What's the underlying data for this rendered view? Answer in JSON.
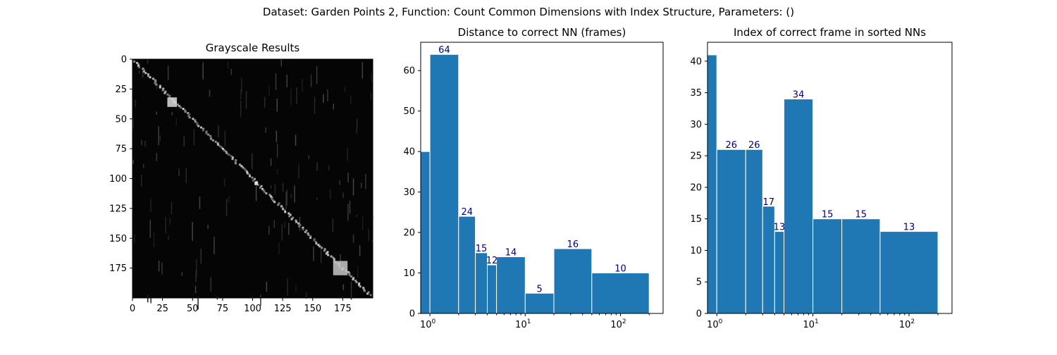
{
  "suptitle": "Dataset:  Garden Points 2,  Function:  Count Common Dimensions with Index Structure, Parameters: ()",
  "colors": {
    "bar": "#1f77b4",
    "bar_edge": "#ffffff",
    "data_label": "#000080",
    "axis": "#000000",
    "heatmap_bg": "#050505"
  },
  "chart_data": [
    {
      "type": "heatmap",
      "title": "Grayscale Results",
      "colormap": "gray",
      "x_ticks": [
        0,
        25,
        50,
        75,
        100,
        125,
        150,
        175
      ],
      "y_ticks": [
        0,
        25,
        50,
        75,
        100,
        125,
        150,
        175
      ],
      "xlim": [
        0,
        200
      ],
      "ylim": [
        0,
        200
      ],
      "y_inverted": true
    },
    {
      "type": "bar",
      "title": "Distance to correct NN (frames)",
      "x_scale": "log",
      "xlim": [
        0.8,
        280
      ],
      "ylim": [
        0,
        67
      ],
      "y_ticks": [
        0,
        10,
        20,
        30,
        40,
        50,
        60
      ],
      "x_ticks": [
        1,
        10,
        100
      ],
      "x_tick_labels": [
        "10^0",
        "10^1",
        "10^2"
      ],
      "bins": [
        {
          "x0": 0,
          "x1": 1,
          "value": 40,
          "label": ""
        },
        {
          "x0": 1,
          "x1": 2,
          "value": 64,
          "label": "64"
        },
        {
          "x0": 2,
          "x1": 3,
          "value": 24,
          "label": "24"
        },
        {
          "x0": 3,
          "x1": 4,
          "value": 15,
          "label": "15"
        },
        {
          "x0": 4,
          "x1": 5,
          "value": 12,
          "label": "12"
        },
        {
          "x0": 5,
          "x1": 10,
          "value": 14,
          "label": "14"
        },
        {
          "x0": 10,
          "x1": 20,
          "value": 5,
          "label": "5"
        },
        {
          "x0": 20,
          "x1": 50,
          "value": 16,
          "label": "16"
        },
        {
          "x0": 50,
          "x1": 200,
          "value": 10,
          "label": "10"
        }
      ]
    },
    {
      "type": "bar",
      "title": "Index of correct frame in sorted NNs",
      "x_scale": "log",
      "xlim": [
        0.8,
        280
      ],
      "ylim": [
        0,
        43
      ],
      "y_ticks": [
        0,
        5,
        10,
        15,
        20,
        25,
        30,
        35,
        40
      ],
      "x_ticks": [
        1,
        10,
        100
      ],
      "x_tick_labels": [
        "10^0",
        "10^1",
        "10^2"
      ],
      "bins": [
        {
          "x0": 0,
          "x1": 1,
          "value": 41,
          "label": ""
        },
        {
          "x0": 1,
          "x1": 2,
          "value": 26,
          "label": "26"
        },
        {
          "x0": 2,
          "x1": 3,
          "value": 26,
          "label": "26"
        },
        {
          "x0": 3,
          "x1": 4,
          "value": 17,
          "label": "17"
        },
        {
          "x0": 4,
          "x1": 5,
          "value": 13,
          "label": "13"
        },
        {
          "x0": 5,
          "x1": 10,
          "value": 34,
          "label": "34"
        },
        {
          "x0": 10,
          "x1": 20,
          "value": 15,
          "label": "15"
        },
        {
          "x0": 20,
          "x1": 50,
          "value": 15,
          "label": "15"
        },
        {
          "x0": 50,
          "x1": 200,
          "value": 13,
          "label": "13"
        }
      ]
    }
  ]
}
